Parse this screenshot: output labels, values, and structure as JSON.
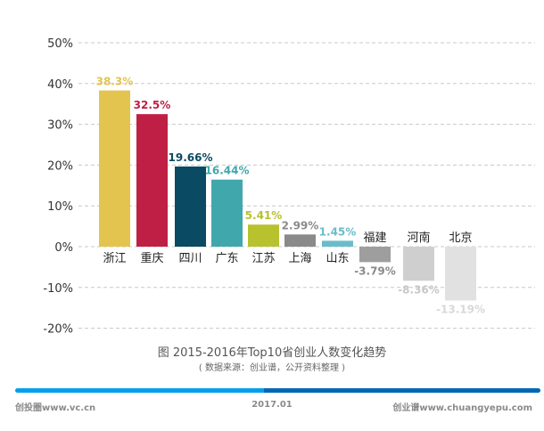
{
  "chart_data": {
    "type": "bar",
    "categories": [
      "浙江",
      "重庆",
      "四川",
      "广东",
      "江苏",
      "上海",
      "山东",
      "福建",
      "河南",
      "北京"
    ],
    "values": [
      38.3,
      32.5,
      19.66,
      16.44,
      5.41,
      2.99,
      1.45,
      -3.79,
      -8.36,
      -13.19
    ],
    "value_labels": [
      "38.3%",
      "32.5%",
      "19.66%",
      "16.44%",
      "5.41%",
      "2.99%",
      "1.45%",
      "-3.79%",
      "-8.36%",
      "-13.19%"
    ],
    "colors": [
      "#E3C44F",
      "#C01F45",
      "#0B4A63",
      "#40A7AD",
      "#B8C12E",
      "#8A8A8A",
      "#6BBCCB",
      "#9E9E9E",
      "#CFCFCF",
      "#E1E1E1"
    ],
    "label_colors": [
      "#E3C44F",
      "#C01F45",
      "#0B4A63",
      "#40A7AD",
      "#B8C12E",
      "#8A8A8A",
      "#6BBCCB",
      "#8A8A8A",
      "#C8C8C8",
      "#D8D8D8"
    ],
    "yticks": [
      50,
      40,
      30,
      20,
      10,
      0,
      -10,
      -20
    ],
    "ytick_labels": [
      "50%",
      "40%",
      "30%",
      "20%",
      "10%",
      "0%",
      "-10%",
      "-20%"
    ],
    "ylim": [
      -20,
      50
    ],
    "grid": true,
    "title": "图 2015-2016年Top10省创业人数变化趋势",
    "subtitle": "( 数据来源：创业谱，公开资料整理 )"
  },
  "footer": {
    "left": "创投圈www.vc.cn",
    "center": "2017.01",
    "right": "创业谱www.chuangyepu.com"
  },
  "footer_colors": [
    "#02A0E9",
    "#0068B3"
  ]
}
